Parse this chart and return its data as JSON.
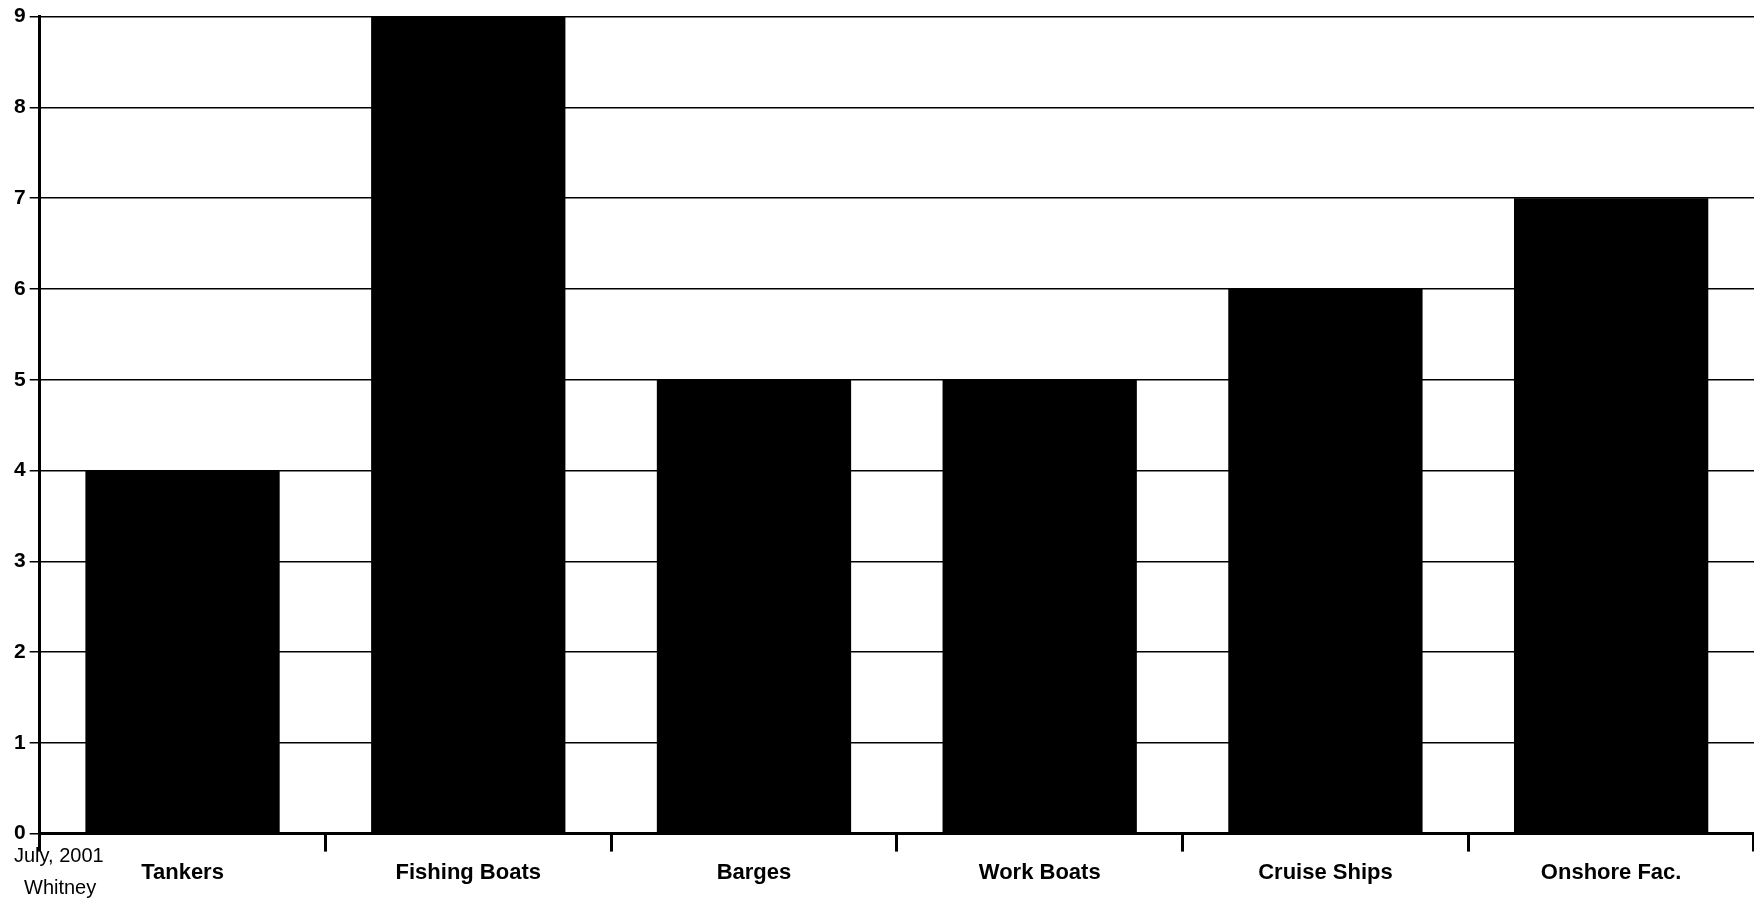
{
  "chart_data": {
    "type": "bar",
    "categories": [
      "Tankers",
      "Fishing Boats",
      "Barges",
      "Work Boats",
      "Cruise Ships",
      "Onshore Fac."
    ],
    "values": [
      4,
      9,
      5,
      5,
      6,
      7
    ],
    "color": "#000000",
    "ylim": [
      0,
      9
    ],
    "yticks": [
      0,
      1,
      2,
      3,
      4,
      5,
      6,
      7,
      8,
      9
    ],
    "grid": "y",
    "legend": false,
    "annotations": [
      "July, 2001",
      "Whitney"
    ]
  }
}
